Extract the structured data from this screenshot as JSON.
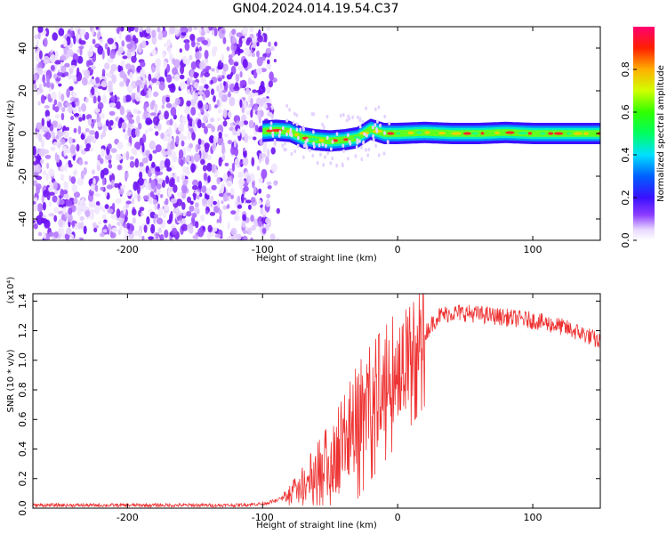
{
  "title": "GN04.2024.014.19.54.C37",
  "chart_data": [
    {
      "type": "heatmap",
      "xlabel": "Height of straight line (km)",
      "ylabel": "Frequency (Hz)",
      "xlim": [
        -270,
        150
      ],
      "ylim": [
        -50,
        50
      ],
      "x_ticks": [
        -200,
        -100,
        0,
        100
      ],
      "y_ticks": [
        -40,
        -20,
        0,
        20,
        40
      ],
      "colorbar": {
        "label": "Normalized spectral amplitude",
        "range": [
          0.0,
          1.0
        ],
        "ticks": [
          "0.0",
          "0.2",
          "0.4",
          "0.6",
          "0.8"
        ],
        "tick_values": [
          0.0,
          0.2,
          0.4,
          0.6,
          0.8
        ]
      },
      "noise_region_x": [
        -270,
        -95
      ],
      "trace": {
        "x": [
          -100,
          -90,
          -80,
          -70,
          -60,
          -50,
          -40,
          -30,
          -25,
          -20,
          -10,
          0,
          20,
          40,
          60,
          80,
          100,
          120,
          150
        ],
        "y": [
          1,
          1.5,
          1,
          -2,
          -3,
          -3.5,
          -3,
          -2,
          0,
          2,
          0,
          0,
          0.5,
          0,
          0,
          0.5,
          0,
          0,
          0
        ]
      }
    },
    {
      "type": "line",
      "xlabel": "Height of straight line (km)",
      "ylabel": "SNR (10 * v/v)",
      "y_multiplier": "(x10⁴)",
      "xlim": [
        -270,
        150
      ],
      "ylim": [
        0,
        1.45
      ],
      "x_ticks": [
        -200,
        -100,
        0,
        100
      ],
      "y_ticks": [
        "0.0",
        "0.2",
        "0.4",
        "0.6",
        "0.8",
        "1.0",
        "1.2",
        "1.4"
      ],
      "y_tick_values": [
        0.0,
        0.2,
        0.4,
        0.6,
        0.8,
        1.0,
        1.2,
        1.4
      ],
      "series": [
        {
          "color": "#ee3333",
          "x": [
            -270,
            -200,
            -120,
            -100,
            -90,
            -80,
            -70,
            -60,
            -50,
            -40,
            -30,
            -20,
            -10,
            0,
            10,
            20,
            30,
            40,
            50,
            60,
            70,
            80,
            90,
            100,
            110,
            120,
            130,
            140,
            150
          ],
          "y": [
            0.02,
            0.02,
            0.02,
            0.03,
            0.05,
            0.08,
            0.14,
            0.22,
            0.3,
            0.4,
            0.55,
            0.68,
            0.8,
            0.92,
            1.05,
            1.18,
            1.3,
            1.32,
            1.32,
            1.31,
            1.3,
            1.29,
            1.28,
            1.27,
            1.25,
            1.23,
            1.2,
            1.17,
            1.12
          ]
        }
      ]
    }
  ]
}
